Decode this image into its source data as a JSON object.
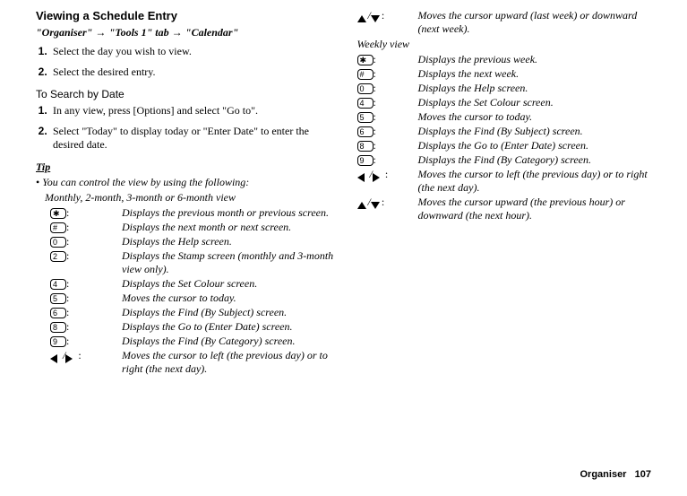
{
  "left": {
    "title": "Viewing a Schedule Entry",
    "breadcrumb": [
      "\"Organiser\"",
      "\"Tools 1\" tab",
      "\"Calendar\""
    ],
    "steps1": [
      "Select the day you wish to view.",
      "Select the desired entry."
    ],
    "sub1": "To Search by Date",
    "steps2": [
      "In any view, press [Options] and select \"Go to\".",
      "Select \"Today\" to display today or \"Enter Date\" to enter the desired date."
    ],
    "tip_label": "Tip",
    "tip_line": "You can control the view by using the following:",
    "view_heading": "Monthly, 2-month, 3-month or 6-month view",
    "rows": [
      {
        "key": "*",
        "desc": "Displays the previous month or previous screen."
      },
      {
        "key": "#",
        "desc": "Displays the next month or next screen."
      },
      {
        "key": "0",
        "desc": "Displays the Help screen."
      },
      {
        "key": "2",
        "desc": "Displays the Stamp screen (monthly and 3-month view only)."
      },
      {
        "key": "4",
        "desc": "Displays the Set Colour screen."
      },
      {
        "key": "5",
        "desc": "Moves the cursor to today."
      },
      {
        "key": "6",
        "desc": "Displays the Find (By Subject) screen."
      },
      {
        "key": "8",
        "desc": "Displays the Go to (Enter Date) screen."
      },
      {
        "key": "9",
        "desc": "Displays the Find (By Category) screen."
      },
      {
        "key": "lr",
        "desc": "Moves the cursor to left (the previous day) or to right (the next day)."
      }
    ]
  },
  "right": {
    "top_row": {
      "key": "ud",
      "desc": "Moves the cursor upward (last week) or downward (next week)."
    },
    "view_heading": "Weekly view",
    "rows": [
      {
        "key": "*",
        "desc": "Displays the previous week."
      },
      {
        "key": "#",
        "desc": "Displays the next week."
      },
      {
        "key": "0",
        "desc": "Displays the Help screen."
      },
      {
        "key": "4",
        "desc": "Displays the Set Colour screen."
      },
      {
        "key": "5",
        "desc": "Moves the cursor to today."
      },
      {
        "key": "6",
        "desc": "Displays the Find (By Subject) screen."
      },
      {
        "key": "8",
        "desc": "Displays the Go to (Enter Date) screen."
      },
      {
        "key": "9",
        "desc": "Displays the Find (By Category) screen."
      },
      {
        "key": "lr",
        "desc": "Moves the cursor to left (the previous day) or to right (the next day)."
      },
      {
        "key": "ud",
        "desc": "Moves the cursor upward (the previous hour) or downward (the next hour)."
      }
    ]
  },
  "footer": {
    "label": "Organiser",
    "page": "107"
  }
}
